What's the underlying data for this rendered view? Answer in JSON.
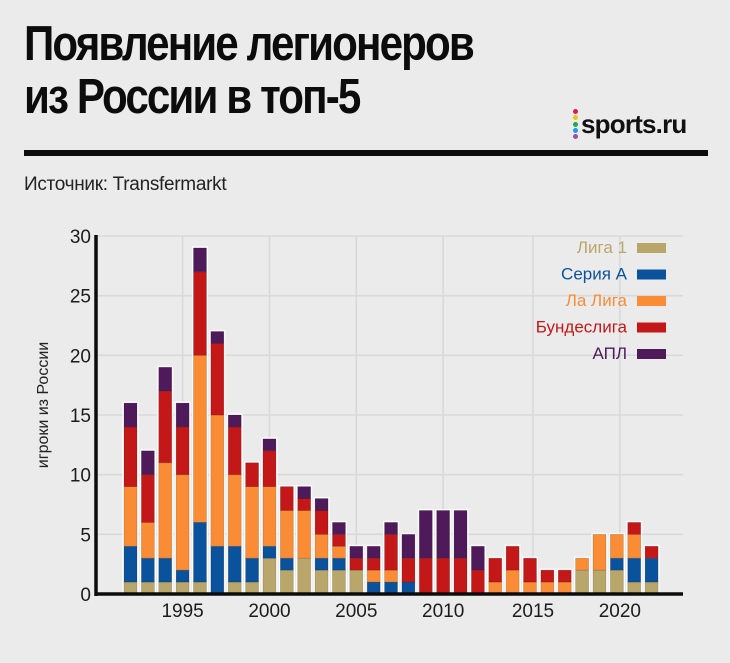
{
  "header": {
    "title_lines": [
      "Появление легионеров",
      "из России в топ-5"
    ],
    "source": "Источник: Transfermarkt",
    "logo": {
      "text": "sports.ru",
      "dot_colors": [
        "#d81b60",
        "#f4c20d",
        "#1fa84f",
        "#1e9be9",
        "#9b4fa5"
      ]
    }
  },
  "chart_data": {
    "type": "bar",
    "stacked": true,
    "title": "Появление легионеров из России в топ-5",
    "xlabel": "",
    "ylabel": "игроки из России",
    "ylim": [
      0,
      30
    ],
    "yticks": [
      0,
      5,
      10,
      15,
      20,
      25,
      30
    ],
    "xticks": [
      1995,
      2000,
      2005,
      2010,
      2015,
      2020
    ],
    "grid": true,
    "legend_position": "top-right",
    "categories": [
      1992,
      1993,
      1994,
      1995,
      1996,
      1997,
      1998,
      1999,
      2000,
      2001,
      2002,
      2003,
      2004,
      2005,
      2006,
      2007,
      2008,
      2009,
      2010,
      2011,
      2012,
      2013,
      2014,
      2015,
      2016,
      2017,
      2018,
      2019,
      2020,
      2021,
      2022
    ],
    "series": [
      {
        "name": "Лига 1",
        "color": "#b9a66a",
        "values": [
          1,
          1,
          1,
          1,
          1,
          0,
          1,
          1,
          3,
          2,
          3,
          2,
          2,
          2,
          0,
          0,
          0,
          0,
          0,
          0,
          0,
          0,
          0,
          0,
          0,
          0,
          2,
          2,
          2,
          1,
          1
        ]
      },
      {
        "name": "Серия А",
        "color": "#0b529c",
        "values": [
          3,
          2,
          2,
          1,
          5,
          4,
          3,
          2,
          1,
          1,
          0,
          1,
          1,
          0,
          1,
          1,
          1,
          0,
          0,
          0,
          0,
          0,
          0,
          0,
          0,
          0,
          0,
          0,
          1,
          2,
          2
        ]
      },
      {
        "name": "Ла Лига",
        "color": "#f98c35",
        "values": [
          5,
          3,
          8,
          8,
          14,
          11,
          6,
          6,
          5,
          4,
          4,
          2,
          1,
          0,
          1,
          1,
          0,
          0,
          0,
          0,
          0,
          1,
          2,
          1,
          1,
          1,
          1,
          3,
          2,
          2,
          0
        ]
      },
      {
        "name": "Бундеслига",
        "color": "#c41818",
        "values": [
          5,
          4,
          6,
          4,
          7,
          6,
          4,
          2,
          3,
          2,
          1,
          2,
          1,
          1,
          1,
          3,
          2,
          3,
          3,
          3,
          2,
          2,
          2,
          2,
          1,
          1,
          0,
          0,
          0,
          1,
          1
        ]
      },
      {
        "name": "АПЛ",
        "color": "#4f1a5a",
        "values": [
          2,
          2,
          2,
          2,
          2,
          1,
          1,
          0,
          1,
          0,
          1,
          1,
          1,
          1,
          1,
          1,
          2,
          4,
          4,
          4,
          2,
          0,
          0,
          0,
          0,
          0,
          0,
          0,
          0,
          0,
          0
        ]
      }
    ]
  }
}
